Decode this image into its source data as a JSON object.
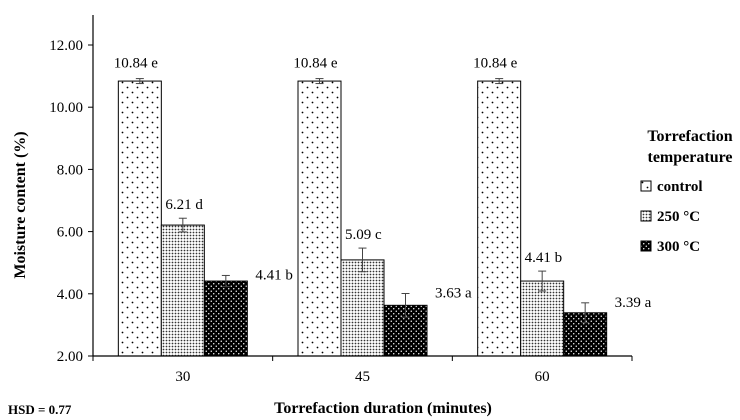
{
  "chart_data": {
    "type": "bar",
    "categories": [
      "30",
      "45",
      "60"
    ],
    "series": [
      {
        "name": "control",
        "values": [
          10.84,
          10.84,
          10.84
        ],
        "errors": [
          0.08,
          0.08,
          0.08
        ],
        "labels": [
          "10.84 e",
          "10.84 e",
          "10.84 e"
        ],
        "pattern": "sparse-dots"
      },
      {
        "name": "250 °C",
        "values": [
          6.21,
          5.09,
          4.41
        ],
        "errors": [
          0.22,
          0.38,
          0.32
        ],
        "labels": [
          "6.21 d",
          "5.09 c",
          "4.41 b"
        ],
        "pattern": "dense-dots"
      },
      {
        "name": "300 °C",
        "values": [
          4.41,
          3.63,
          3.39
        ],
        "errors": [
          0.18,
          0.38,
          0.32
        ],
        "labels": [
          "4.41 b",
          "3.63 a",
          "3.39 a"
        ],
        "pattern": "black-dots"
      }
    ],
    "xlabel": "Torrefaction duration (minutes)",
    "ylabel": "Moisture content (%)",
    "ylim": [
      2,
      12
    ],
    "yticks": [
      "2.00",
      "4.00",
      "6.00",
      "8.00",
      "10.00",
      "12.00"
    ],
    "legend_title_lines": [
      "Torrefaction",
      "temperature"
    ],
    "legend_position": "right",
    "grid": false
  },
  "note": "HSD = 0.77"
}
